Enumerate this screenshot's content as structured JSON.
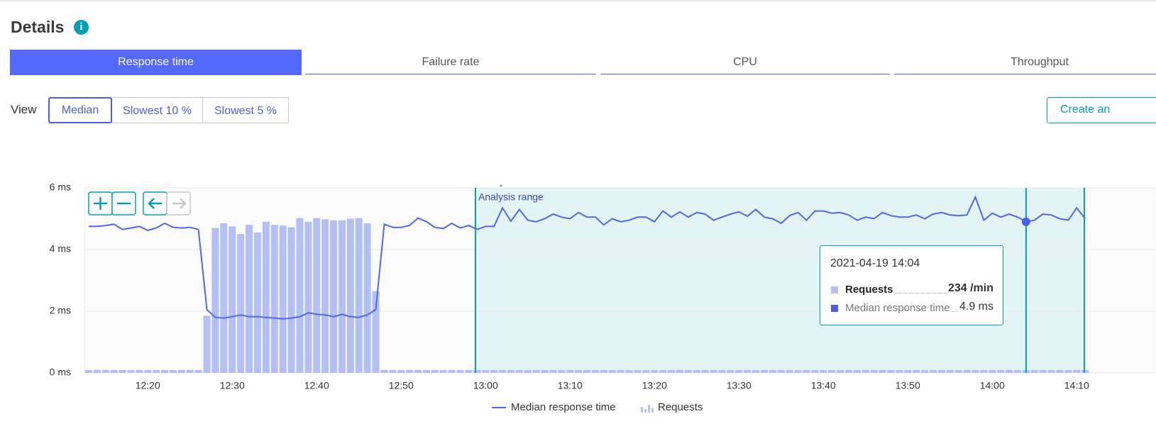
{
  "header": {
    "title": "Details"
  },
  "tabs": [
    "Response time",
    "Failure rate",
    "CPU",
    "Throughput"
  ],
  "view": {
    "label": "View",
    "options": [
      "Median",
      "Slowest 10 %",
      "Slowest 5 %"
    ]
  },
  "create_button": "Create an",
  "chart_data": {
    "type": "combo",
    "categories": [
      null,
      null,
      null,
      null,
      null,
      null,
      null,
      "12:20",
      null,
      null,
      null,
      null,
      null,
      null,
      null,
      null,
      null,
      "12:30",
      null,
      null,
      null,
      null,
      null,
      null,
      null,
      null,
      null,
      "12:40",
      null,
      null,
      null,
      null,
      null,
      null,
      null,
      null,
      null,
      "12:50",
      null,
      null,
      null,
      null,
      null,
      null,
      null,
      null,
      null,
      "13:00",
      null,
      null,
      null,
      null,
      null,
      null,
      null,
      null,
      null,
      "13:10",
      null,
      null,
      null,
      null,
      null,
      null,
      null,
      null,
      null,
      "13:20",
      null,
      null,
      null,
      null,
      null,
      null,
      null,
      null,
      null,
      "13:30",
      null,
      null,
      null,
      null,
      null,
      null,
      null,
      null,
      null,
      "13:40",
      null,
      null,
      null,
      null,
      null,
      null,
      null,
      null,
      null,
      "13:50",
      null,
      null,
      null,
      null,
      null,
      null,
      null,
      null,
      null,
      "14:00",
      null,
      null,
      null,
      null,
      null,
      null,
      null,
      null,
      null,
      "14:10",
      null
    ],
    "series": [
      {
        "name": "Median response time",
        "type": "line",
        "color": "#5065f2",
        "values": [
          4.75,
          4.75,
          4.78,
          4.82,
          4.65,
          4.7,
          4.75,
          4.62,
          4.7,
          4.85,
          4.72,
          4.7,
          4.72,
          4.65,
          2.05,
          1.8,
          1.78,
          1.82,
          1.88,
          1.82,
          1.82,
          1.8,
          1.78,
          1.75,
          1.78,
          1.82,
          1.95,
          1.9,
          1.88,
          1.82,
          1.9,
          1.82,
          1.8,
          1.88,
          2.05,
          4.82,
          4.72,
          4.72,
          4.78,
          5.02,
          4.9,
          4.72,
          4.68,
          4.85,
          4.7,
          4.78,
          4.65,
          4.75,
          4.75,
          5.35,
          4.92,
          5.3,
          4.95,
          4.9,
          5.0,
          5.15,
          5.05,
          5.0,
          5.2,
          5.05,
          5.05,
          4.8,
          5.0,
          4.9,
          4.95,
          5.05,
          5.05,
          4.9,
          5.25,
          5.05,
          5.22,
          5.05,
          5.2,
          5.15,
          4.95,
          5.05,
          5.15,
          5.22,
          5.08,
          5.3,
          5.05,
          5.0,
          4.85,
          5.1,
          5.2,
          4.95,
          5.25,
          5.25,
          5.18,
          5.2,
          5.12,
          4.95,
          5.05,
          5.0,
          5.2,
          5.1,
          5.05,
          5.05,
          5.12,
          5.0,
          5.15,
          5.2,
          5.12,
          5.1,
          5.12,
          5.7,
          4.95,
          5.18,
          5.05,
          5.15,
          5.05,
          4.9,
          4.95,
          5.15,
          5.12,
          5.0,
          4.95,
          5.35,
          5.0
        ]
      },
      {
        "name": "Requests",
        "type": "bar",
        "axis": "y2",
        "color": "#b3bff5",
        "values": [
          240,
          245,
          238,
          236,
          242,
          240,
          238,
          235,
          241,
          239,
          236,
          240,
          237,
          238,
          4625,
          11750,
          12125,
          11875,
          11250,
          12000,
          11375,
          12250,
          12000,
          11950,
          11800,
          12550,
          12250,
          12550,
          12450,
          12375,
          12375,
          12500,
          12550,
          12125,
          6625,
          240,
          238,
          236,
          241,
          239,
          237,
          240,
          236,
          238,
          235,
          239,
          241,
          236,
          234,
          238,
          240,
          236,
          239,
          235,
          237,
          238,
          236,
          240,
          235,
          239,
          237,
          236,
          238,
          240,
          234,
          237,
          239,
          235,
          238,
          236,
          240,
          237,
          235,
          239,
          236,
          238,
          234,
          237,
          240,
          236,
          238,
          235,
          239,
          237,
          236,
          240,
          235,
          238,
          236,
          239,
          237,
          234,
          238,
          236,
          240,
          237,
          235,
          239,
          236,
          238,
          234,
          237,
          240,
          236,
          238,
          235,
          239,
          236,
          238,
          237,
          236,
          234,
          239,
          237,
          235,
          238,
          236,
          240,
          237
        ]
      }
    ],
    "ylim": [
      0,
      6
    ],
    "yticks": [
      {
        "value": 0,
        "label": "0 ms"
      },
      {
        "value": 2,
        "label": "2 ms"
      },
      {
        "value": 4,
        "label": "4 ms"
      },
      {
        "value": 6,
        "label": "6 ms"
      }
    ],
    "y2lim": [
      0,
      15000
    ],
    "grid": true,
    "annotation": "Analysis range",
    "tooltip": {
      "title": "2021-04-19 14:04",
      "rows": [
        {
          "name": "Requests",
          "value": "234 /min"
        },
        {
          "name": "Median response time",
          "value": "4.9 ms"
        }
      ]
    }
  }
}
